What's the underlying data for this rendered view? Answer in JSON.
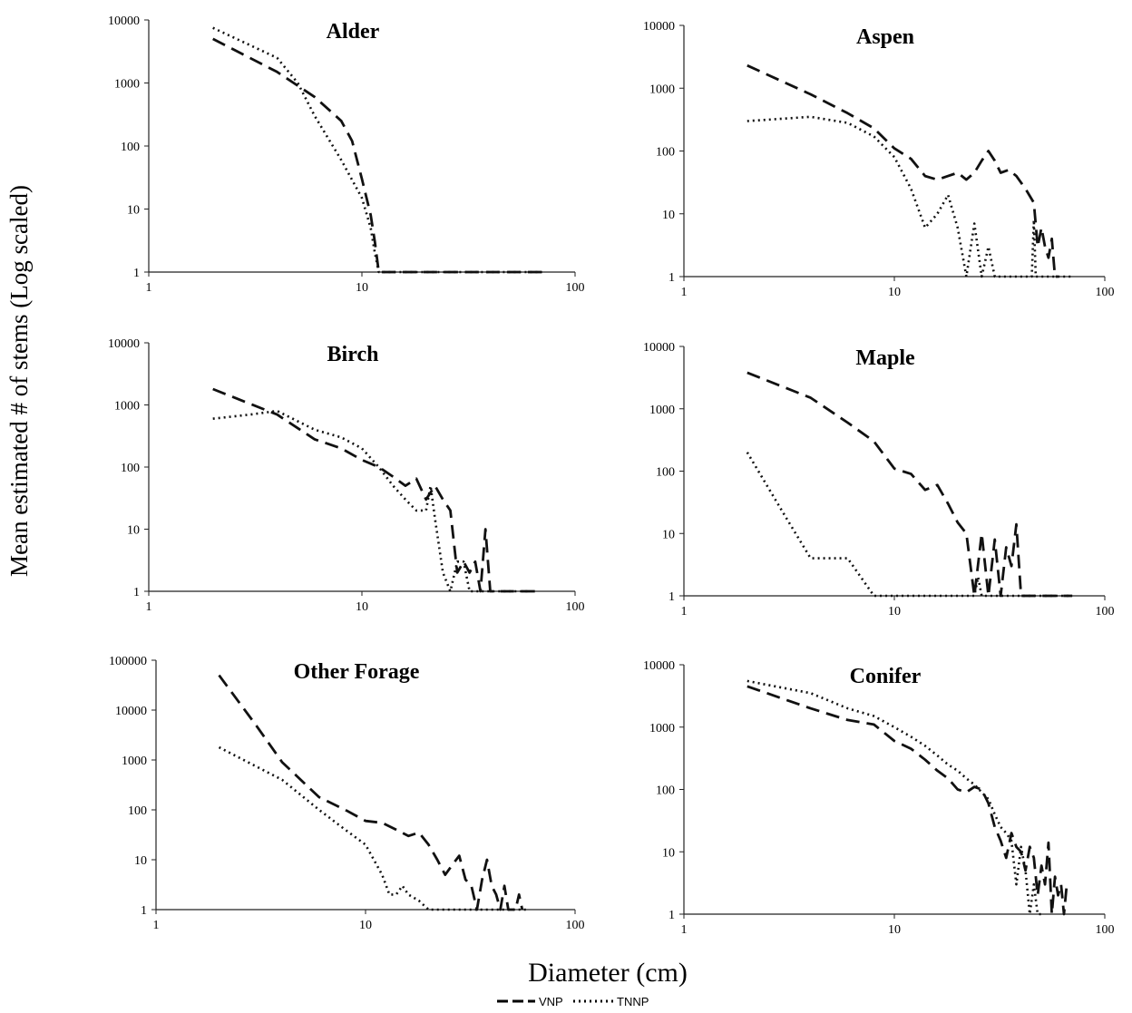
{
  "figure": {
    "ylabel": "Mean estimated # of stems (Log scaled)",
    "xlabel": "Diameter (cm)",
    "legend": [
      {
        "label": "VNP",
        "style": "dashed"
      },
      {
        "label": "TNNP",
        "style": "dotted"
      }
    ],
    "legend_placement": "bottom-center"
  },
  "chart_data": [
    {
      "type": "line",
      "title": "Alder",
      "xscale": "log",
      "yscale": "log",
      "xlim": [
        1,
        100
      ],
      "ylim": [
        1,
        10000
      ],
      "xticks": [
        "1",
        "10",
        "100"
      ],
      "yticks": [
        "1",
        "10",
        "100",
        "1000",
        "10000"
      ],
      "series": [
        {
          "name": "VNP",
          "x": [
            2,
            4,
            6,
            8,
            9,
            10,
            11,
            11.5,
            12,
            15,
            20,
            30,
            45,
            70
          ],
          "y": [
            5000,
            1500,
            600,
            250,
            120,
            30,
            8,
            3,
            1,
            1,
            1,
            1,
            1,
            1
          ]
        },
        {
          "name": "TNNP",
          "x": [
            2,
            4,
            5,
            6,
            8,
            10,
            11,
            11.5,
            12,
            15,
            20,
            30,
            45,
            70
          ],
          "y": [
            7500,
            2500,
            1000,
            300,
            60,
            15,
            5,
            2,
            1,
            1,
            1,
            1,
            1,
            1
          ]
        }
      ]
    },
    {
      "type": "line",
      "title": "Aspen",
      "xscale": "log",
      "yscale": "log",
      "xlim": [
        1,
        100
      ],
      "ylim": [
        1,
        10000
      ],
      "xticks": [
        "1",
        "10",
        "100"
      ],
      "yticks": [
        "1",
        "10",
        "100",
        "1000",
        "10000"
      ],
      "series": [
        {
          "name": "VNP",
          "x": [
            2,
            4,
            6,
            8,
            10,
            12,
            14,
            16,
            18,
            20,
            22,
            24,
            26,
            28,
            30,
            32,
            35,
            38,
            42,
            46,
            48,
            50,
            52,
            54,
            56,
            58,
            60
          ],
          "y": [
            2300,
            800,
            400,
            230,
            110,
            75,
            40,
            35,
            40,
            45,
            35,
            45,
            70,
            100,
            70,
            45,
            50,
            40,
            25,
            15,
            3,
            6,
            3,
            2,
            4,
            1,
            1
          ]
        },
        {
          "name": "TNNP",
          "x": [
            2,
            4,
            6,
            8,
            10,
            12,
            14,
            16,
            18,
            20,
            22,
            24,
            26,
            28,
            30,
            35,
            40,
            45,
            46,
            47,
            48,
            50,
            55,
            60,
            65,
            70
          ],
          "y": [
            300,
            350,
            280,
            170,
            80,
            25,
            6,
            10,
            20,
            6,
            1,
            7,
            1,
            3,
            1,
            1,
            1,
            1,
            8,
            1,
            1,
            1,
            1,
            1,
            1,
            1
          ]
        }
      ]
    },
    {
      "type": "line",
      "title": "Birch",
      "xscale": "log",
      "yscale": "log",
      "xlim": [
        1,
        100
      ],
      "ylim": [
        1,
        10000
      ],
      "xticks": [
        "1",
        "10",
        "100"
      ],
      "yticks": [
        "1",
        "10",
        "100",
        "1000",
        "10000"
      ],
      "series": [
        {
          "name": "VNP",
          "x": [
            2,
            4,
            6,
            8,
            10,
            12,
            14,
            16,
            18,
            20,
            22,
            24,
            26,
            28,
            30,
            32,
            34,
            36,
            38,
            40,
            42,
            44,
            50,
            60,
            70
          ],
          "y": [
            1800,
            700,
            280,
            200,
            130,
            100,
            70,
            50,
            65,
            30,
            50,
            30,
            20,
            2,
            3,
            2,
            3,
            1,
            10,
            1,
            1,
            1,
            1,
            1,
            1
          ]
        },
        {
          "name": "TNNP",
          "x": [
            2,
            3,
            4,
            6,
            8,
            10,
            12,
            14,
            16,
            18,
            20,
            21,
            22,
            24,
            26,
            28,
            30,
            32,
            34,
            40,
            50,
            60
          ],
          "y": [
            600,
            700,
            800,
            400,
            300,
            200,
            100,
            50,
            30,
            20,
            20,
            50,
            15,
            2,
            1,
            3,
            3,
            1,
            1,
            1,
            1,
            1
          ]
        }
      ]
    },
    {
      "type": "line",
      "title": "Maple",
      "xscale": "log",
      "yscale": "log",
      "xlim": [
        1,
        100
      ],
      "ylim": [
        1,
        10000
      ],
      "xticks": [
        "1",
        "10",
        "100"
      ],
      "yticks": [
        "1",
        "10",
        "100",
        "1000",
        "10000"
      ],
      "series": [
        {
          "name": "VNP",
          "x": [
            2,
            4,
            6,
            8,
            10,
            12,
            14,
            16,
            18,
            20,
            22,
            24,
            26,
            28,
            30,
            32,
            34,
            36,
            38,
            40,
            50,
            60,
            70
          ],
          "y": [
            3800,
            1500,
            600,
            300,
            110,
            90,
            50,
            60,
            30,
            15,
            10,
            1,
            10,
            1,
            8,
            1,
            6,
            3,
            14,
            1,
            1,
            1,
            1
          ]
        },
        {
          "name": "TNNP",
          "x": [
            2,
            3,
            4,
            6,
            8,
            10,
            15,
            20,
            22,
            24,
            25,
            26,
            30,
            40,
            50,
            60,
            70
          ],
          "y": [
            200,
            20,
            4,
            4,
            1,
            1,
            1,
            1,
            1,
            1,
            2,
            1,
            1,
            1,
            1,
            1,
            1
          ]
        }
      ]
    },
    {
      "type": "line",
      "title": "Other Forage",
      "xscale": "log",
      "yscale": "log",
      "xlim": [
        1,
        100
      ],
      "ylim": [
        1,
        100000
      ],
      "xticks": [
        "1",
        "10",
        "100"
      ],
      "yticks": [
        "1",
        "10",
        "100",
        "1000",
        "10000",
        "100000"
      ],
      "series": [
        {
          "name": "VNP",
          "x": [
            2,
            3,
            4,
            6,
            8,
            10,
            12,
            14,
            16,
            18,
            20,
            22,
            24,
            26,
            28,
            30,
            32,
            34,
            36,
            38,
            40,
            42,
            44,
            46,
            48,
            50,
            52,
            54,
            56
          ],
          "y": [
            50000,
            5000,
            900,
            180,
            100,
            60,
            55,
            40,
            30,
            35,
            20,
            10,
            5,
            8,
            12,
            4,
            3,
            1,
            4,
            10,
            3,
            2,
            1,
            3,
            1,
            1,
            1,
            2,
            1
          ]
        },
        {
          "name": "TNNP",
          "x": [
            2,
            4,
            6,
            8,
            10,
            12,
            13,
            14,
            15,
            16,
            18,
            20,
            30,
            40,
            60
          ],
          "y": [
            1800,
            400,
            100,
            40,
            20,
            5,
            2,
            2,
            3,
            2,
            1.5,
            1,
            1,
            1,
            1
          ]
        }
      ]
    },
    {
      "type": "line",
      "title": "Conifer",
      "xscale": "log",
      "yscale": "log",
      "xlim": [
        1,
        100
      ],
      "ylim": [
        1,
        10000
      ],
      "xticks": [
        "1",
        "10",
        "100"
      ],
      "yticks": [
        "1",
        "10",
        "100",
        "1000",
        "10000"
      ],
      "series": [
        {
          "name": "VNP",
          "x": [
            2,
            4,
            6,
            8,
            10,
            12,
            14,
            16,
            18,
            20,
            22,
            24,
            26,
            28,
            30,
            32,
            34,
            36,
            38,
            40,
            42,
            44,
            46,
            48,
            50,
            52,
            54,
            56,
            58,
            60,
            62,
            64,
            66
          ],
          "y": [
            4500,
            2000,
            1300,
            1100,
            600,
            450,
            300,
            200,
            150,
            100,
            90,
            110,
            100,
            60,
            25,
            15,
            8,
            20,
            12,
            10,
            5,
            12,
            8,
            2,
            6,
            3,
            14,
            1,
            4,
            2,
            3,
            1,
            3
          ]
        },
        {
          "name": "TNNP",
          "x": [
            2,
            4,
            6,
            8,
            10,
            12,
            14,
            16,
            18,
            20,
            22,
            24,
            26,
            28,
            30,
            32,
            34,
            36,
            38,
            40,
            42,
            44,
            46,
            48,
            50
          ],
          "y": [
            5500,
            3500,
            2000,
            1500,
            1000,
            700,
            500,
            350,
            250,
            200,
            150,
            120,
            90,
            70,
            40,
            25,
            20,
            15,
            3,
            12,
            5,
            1,
            3,
            1,
            1
          ]
        }
      ]
    }
  ]
}
